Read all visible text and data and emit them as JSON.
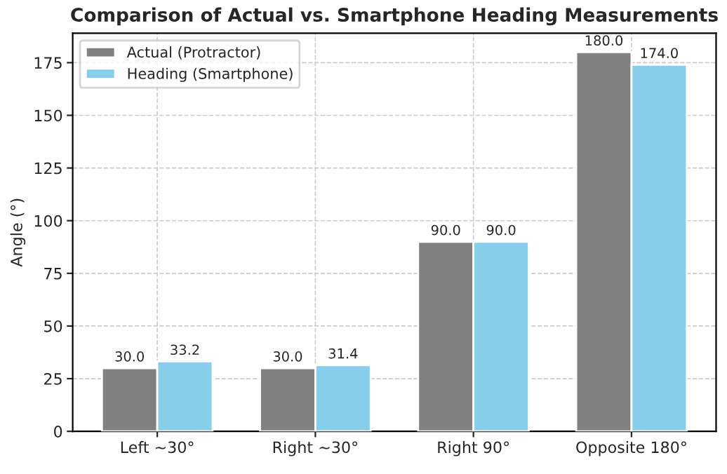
{
  "chart_data": {
    "type": "bar",
    "title": "Comparison of Actual vs. Smartphone Heading Measurements",
    "ylabel": "Angle (°)",
    "categories": [
      "Left ~30°",
      "Right ~30°",
      "Right 90°",
      "Opposite 180°"
    ],
    "series": [
      {
        "name": "Actual (Protractor)",
        "color": "#808080",
        "values": [
          30.0,
          30.0,
          90.0,
          180.0
        ],
        "value_labels": [
          "30.0",
          "30.0",
          "90.0",
          "180.0"
        ]
      },
      {
        "name": "Heading (Smartphone)",
        "color": "#87ceeb",
        "values": [
          33.2,
          31.4,
          90.0,
          174.0
        ],
        "value_labels": [
          "33.2",
          "31.4",
          "90.0",
          "174.0"
        ]
      }
    ],
    "ylim": [
      0,
      189
    ],
    "yticks": [
      0,
      25,
      50,
      75,
      100,
      125,
      150,
      175
    ],
    "grid": true,
    "legend": "top left"
  }
}
